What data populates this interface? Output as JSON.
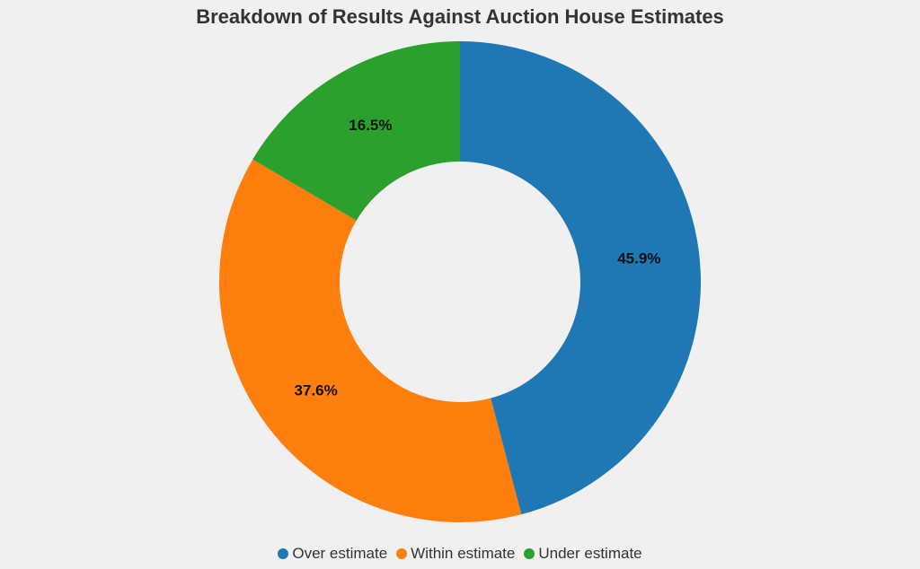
{
  "chart_data": {
    "type": "pie",
    "variant": "donut",
    "title": "Breakdown of Results Against Auction House Estimates",
    "categories": [
      "Over estimate",
      "Within estimate",
      "Under estimate"
    ],
    "values": [
      45.9,
      37.6,
      16.5
    ],
    "labels": [
      "45.9%",
      "37.6%",
      "16.5%"
    ],
    "colors": [
      "#1f77b4",
      "#ff7f0e",
      "#2ca02c"
    ],
    "start_angle": "top",
    "direction": "clockwise",
    "legend_position": "bottom"
  }
}
